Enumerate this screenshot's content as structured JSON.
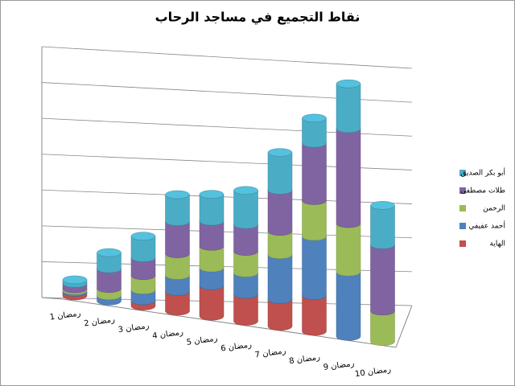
{
  "chart_data": {
    "type": "bar3d-stacked",
    "title": "نقاط التجميع في مساجد الرحاب",
    "categories": [
      "1 رمضان",
      "2 رمضان",
      "3 رمضان",
      "4 رمضان",
      "5 رمضان",
      "6 رمضان",
      "7 رمضان",
      "8 رمضان",
      "9 رمضان",
      "10 رمضان"
    ],
    "series": [
      {
        "name": "الهاية",
        "color": "#c0504d",
        "values": [
          0.1,
          0,
          0.15,
          0.55,
          0.85,
          0.75,
          0.75,
          1.0,
          0,
          0
        ]
      },
      {
        "name": "أحمد عفيفي",
        "color": "#4f81bd",
        "values": [
          0.05,
          0.15,
          0.3,
          0.45,
          0.5,
          0.6,
          1.25,
          1.65,
          1.8,
          0
        ]
      },
      {
        "name": "الرحمن",
        "color": "#9bbb59",
        "values": [
          0.05,
          0.2,
          0.4,
          0.6,
          0.6,
          0.6,
          0.65,
          1.0,
          1.35,
          0.85
        ]
      },
      {
        "name": "طلات مصطفى",
        "color": "#8064a2",
        "values": [
          0.15,
          0.55,
          0.5,
          0.9,
          0.7,
          0.75,
          1.15,
          1.6,
          2.65,
          1.85
        ]
      },
      {
        "name": "أبو بكر الصديق",
        "color": "#4bacc6",
        "values": [
          0.1,
          0.45,
          0.6,
          0.75,
          0.75,
          0.95,
          1.05,
          0.7,
          1.25,
          1.1
        ]
      }
    ],
    "ylim": [
      0,
      7
    ],
    "yticks": [
      0,
      1,
      2,
      3,
      4,
      5,
      6,
      7
    ],
    "grid": true,
    "legend": "right"
  }
}
